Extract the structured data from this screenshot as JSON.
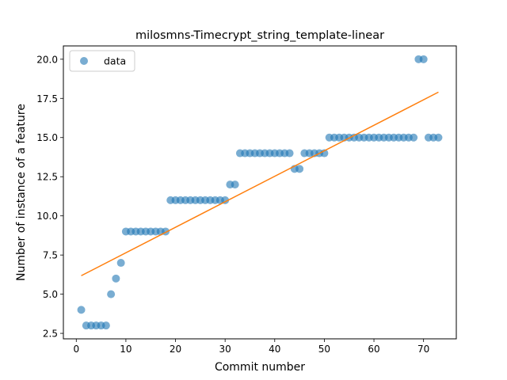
{
  "chart_data": {
    "type": "scatter",
    "title": "milosmns-Timecrypt_string_template-linear",
    "xlabel": "Commit number",
    "ylabel": "Number of instance of a feature",
    "xlim": [
      -2.6,
      76.6
    ],
    "ylim": [
      2.15,
      20.85
    ],
    "xticks": [
      0,
      10,
      20,
      30,
      40,
      50,
      60,
      70
    ],
    "xtick_labels": [
      "0",
      "10",
      "20",
      "30",
      "40",
      "50",
      "60",
      "70"
    ],
    "yticks": [
      2.5,
      5.0,
      7.5,
      10.0,
      12.5,
      15.0,
      17.5,
      20.0
    ],
    "ytick_labels": [
      "2.5",
      "5.0",
      "7.5",
      "10.0",
      "12.5",
      "15.0",
      "17.5",
      "20.0"
    ],
    "grid": false,
    "legend_position": "top-left",
    "series": [
      {
        "name": "data",
        "kind": "scatter",
        "color": "#1f77b4",
        "x": [
          1,
          2,
          3,
          4,
          5,
          6,
          7,
          8,
          9,
          10,
          11,
          12,
          13,
          14,
          15,
          16,
          17,
          18,
          19,
          20,
          21,
          22,
          23,
          24,
          25,
          26,
          27,
          28,
          29,
          30,
          31,
          32,
          33,
          34,
          35,
          36,
          37,
          38,
          39,
          40,
          41,
          42,
          43,
          44,
          45,
          46,
          47,
          48,
          49,
          50,
          51,
          52,
          53,
          54,
          55,
          56,
          57,
          58,
          59,
          60,
          61,
          62,
          63,
          64,
          65,
          66,
          67,
          68,
          69,
          70,
          71,
          72,
          73
        ],
        "y": [
          4,
          3,
          3,
          3,
          3,
          3,
          5,
          6,
          7,
          9,
          9,
          9,
          9,
          9,
          9,
          9,
          9,
          9,
          11,
          11,
          11,
          11,
          11,
          11,
          11,
          11,
          11,
          11,
          11,
          11,
          12,
          12,
          14,
          14,
          14,
          14,
          14,
          14,
          14,
          14,
          14,
          14,
          14,
          13,
          13,
          14,
          14,
          14,
          14,
          14,
          15,
          15,
          15,
          15,
          15,
          15,
          15,
          15,
          15,
          15,
          15,
          15,
          15,
          15,
          15,
          15,
          15,
          15,
          20,
          20,
          15,
          15,
          15
        ]
      },
      {
        "name": "",
        "kind": "line",
        "color": "#ff7f0e",
        "x": [
          1,
          73
        ],
        "y": [
          6.18,
          17.9
        ]
      }
    ]
  }
}
